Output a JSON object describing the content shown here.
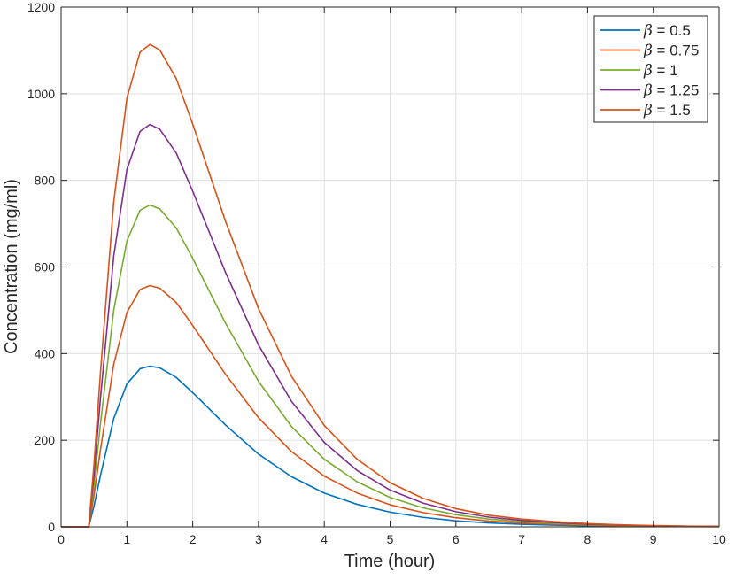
{
  "chart_data": {
    "type": "line",
    "title": "",
    "xlabel": "Time (hour)",
    "ylabel": "Concentration (mg/ml)",
    "xlim": [
      0,
      10
    ],
    "ylim": [
      0,
      1200
    ],
    "xticks": [
      0,
      1,
      2,
      3,
      4,
      5,
      6,
      7,
      8,
      9,
      10
    ],
    "yticks": [
      0,
      200,
      400,
      600,
      800,
      1000,
      1200
    ],
    "grid": true,
    "legend_position": "top-right",
    "legend_symbol": "β",
    "x": [
      0,
      0.2,
      0.4,
      0.42,
      0.5,
      0.6,
      0.8,
      1.0,
      1.2,
      1.35,
      1.5,
      1.75,
      2.0,
      2.5,
      3.0,
      3.5,
      4.0,
      4.5,
      5.0,
      5.5,
      6.0,
      6.5,
      7.0,
      7.5,
      8.0,
      8.5,
      9.0,
      9.5,
      10.0
    ],
    "series": [
      {
        "name": "= 0.5",
        "color": "#0072BD",
        "values": [
          0,
          0,
          0,
          0,
          48,
          120,
          250,
          330,
          365,
          371,
          367,
          345,
          310,
          235,
          168,
          116,
          78,
          52,
          34,
          22,
          14,
          9,
          6,
          4,
          2.5,
          1.6,
          1,
          0.6,
          0.4
        ]
      },
      {
        "name": "= 0.75",
        "color": "#D95319",
        "values": [
          0,
          0,
          0,
          0,
          72,
          180,
          375,
          495,
          548,
          557,
          551,
          518,
          465,
          352,
          252,
          174,
          117,
          78,
          51,
          33,
          21,
          13.5,
          9,
          6,
          3.8,
          2.4,
          1.5,
          0.9,
          0.6
        ]
      },
      {
        "name": "= 1",
        "color": "#77AC30",
        "values": [
          0,
          0,
          0,
          0,
          96,
          240,
          500,
          660,
          731,
          743,
          734,
          690,
          620,
          470,
          336,
          232,
          156,
          104,
          68,
          44,
          28,
          18,
          12,
          8,
          5,
          3.2,
          2,
          1.2,
          0.8
        ]
      },
      {
        "name": "= 1.25",
        "color": "#7E2F8E",
        "values": [
          0,
          0,
          0,
          0,
          120,
          300,
          625,
          825,
          913,
          929,
          918,
          863,
          775,
          587,
          420,
          290,
          195,
          130,
          85,
          55,
          35,
          22.5,
          15,
          10,
          6.3,
          4,
          2.5,
          1.5,
          1
        ]
      },
      {
        "name": "= 1.5",
        "color": "#D95319",
        "values": [
          0,
          0,
          0,
          0,
          144,
          360,
          750,
          990,
          1096,
          1114,
          1101,
          1035,
          930,
          705,
          504,
          348,
          234,
          156,
          102,
          66,
          42,
          27,
          18,
          12,
          7.6,
          4.8,
          3,
          1.8,
          1.2
        ]
      }
    ]
  }
}
